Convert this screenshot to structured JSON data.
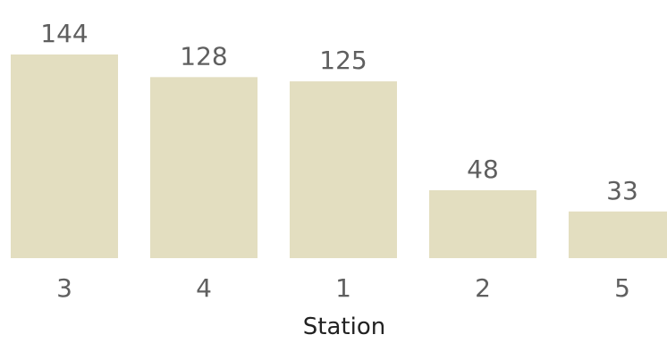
{
  "chart_data": {
    "type": "bar",
    "categories": [
      "3",
      "4",
      "1",
      "2",
      "5"
    ],
    "values": [
      144,
      128,
      125,
      48,
      33
    ],
    "xlabel": "Station",
    "ylabel": "",
    "ylim": [
      0,
      144
    ],
    "grid": false,
    "data_labels": true,
    "bar_color": "#e3dec0"
  }
}
